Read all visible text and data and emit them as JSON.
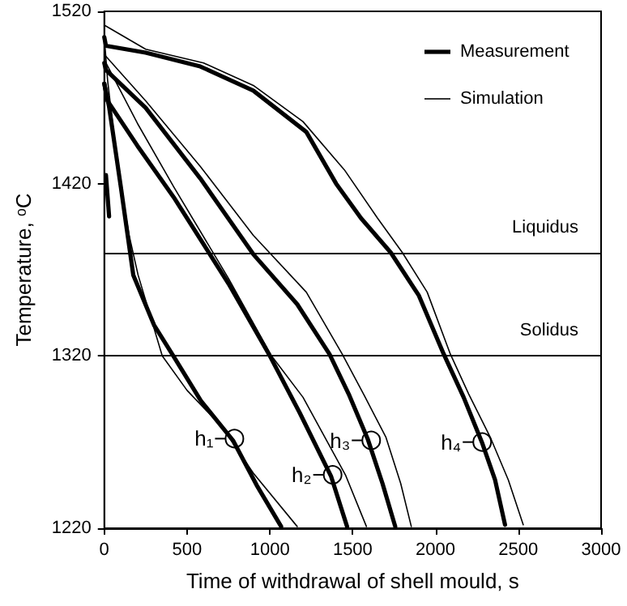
{
  "chart_data": {
    "type": "line",
    "xlabel": "Time of withdrawal of shell mould, s",
    "ylabel": "Temperature, ᵒC",
    "series": [
      {
        "name": "Measurement",
        "color": "#000000",
        "x": [
          0,
          10,
          250,
          580,
          900,
          1220,
          1400,
          1550,
          1730,
          1900,
          2050,
          2170,
          2280,
          2360,
          2420
        ],
        "values": [
          1505,
          1500,
          1496,
          1488,
          1474,
          1450,
          1420,
          1400,
          1380,
          1355,
          1321,
          1296,
          1270,
          1248,
          1222
        ]
      },
      {
        "color": "#000000",
        "x": [
          0,
          10,
          250,
          580,
          900,
          1165,
          1360,
          1480,
          1590,
          1680,
          1757
        ],
        "values": [
          1490,
          1486,
          1464,
          1423,
          1379,
          1350,
          1321,
          1297,
          1272,
          1246,
          1221
        ]
      },
      {
        "color": "#000000",
        "x": [
          0,
          20,
          200,
          420,
          750,
          1000,
          1180,
          1370,
          1466
        ],
        "values": [
          1478,
          1468,
          1442,
          1412,
          1362,
          1320,
          1287,
          1250,
          1221
        ]
      },
      {
        "color": "#000000",
        "x": [
          0,
          30,
          100,
          175,
          300,
          417,
          583,
          777,
          920,
          1068
        ],
        "values": [
          1478,
          1464,
          1418,
          1367,
          1338,
          1320,
          1294,
          1271,
          1245,
          1221
        ]
      },
      {
        "color": "#000000",
        "x": [
          10,
          29
        ],
        "values": [
          1425,
          1401
        ]
      },
      {
        "name": "Simulation",
        "color": "#000000",
        "x": [
          0,
          250,
          600,
          900,
          1200,
          1450,
          1650,
          1800,
          1950,
          2090,
          2200,
          2330,
          2440,
          2530
        ],
        "values": [
          1512,
          1498,
          1490,
          1477,
          1456,
          1428,
          1400,
          1380,
          1357,
          1321,
          1298,
          1273,
          1248,
          1222
        ]
      },
      {
        "color": "#000000",
        "x": [
          0,
          250,
          580,
          900,
          1220,
          1437,
          1570,
          1700,
          1790,
          1854
        ],
        "values": [
          1495,
          1468,
          1430,
          1390,
          1357,
          1321,
          1297,
          1273,
          1246,
          1221
        ]
      },
      {
        "color": "#000000",
        "x": [
          0,
          200,
          420,
          750,
          1010,
          1200,
          1456,
          1583
        ],
        "values": [
          1492,
          1455,
          1418,
          1365,
          1320,
          1296,
          1251,
          1221
        ]
      },
      {
        "color": "#000000",
        "x": [
          0,
          20,
          80,
          150,
          204,
          350,
          500,
          709,
          900,
          1165
        ],
        "values": [
          1505,
          1480,
          1430,
          1390,
          1367,
          1320,
          1300,
          1279,
          1252,
          1221
        ]
      }
    ],
    "xlim": [
      0,
      3000
    ],
    "xticks": [
      0,
      500,
      1000,
      1500,
      2000,
      2500,
      3000
    ],
    "ylim": [
      1220,
      1520
    ],
    "yticks": [
      1220,
      1320,
      1420,
      1520
    ],
    "ref_lines": [
      {
        "axis": "y",
        "value": 1380,
        "label": "Liquidus",
        "color": "#000000"
      },
      {
        "axis": "y",
        "value": 1320,
        "label": "Solidus",
        "color": "#000000"
      }
    ],
    "annotations": [
      {
        "text": "h₁",
        "x": 786,
        "y": 1272
      },
      {
        "text": "h₂",
        "x": 1379,
        "y": 1251
      },
      {
        "text": "h₃",
        "x": 1612,
        "y": 1271
      },
      {
        "text": "h₄",
        "x": 2282,
        "y": 1270
      }
    ],
    "legend": "top right",
    "grid": false,
    "marker": "none",
    "line_style": "solid"
  }
}
